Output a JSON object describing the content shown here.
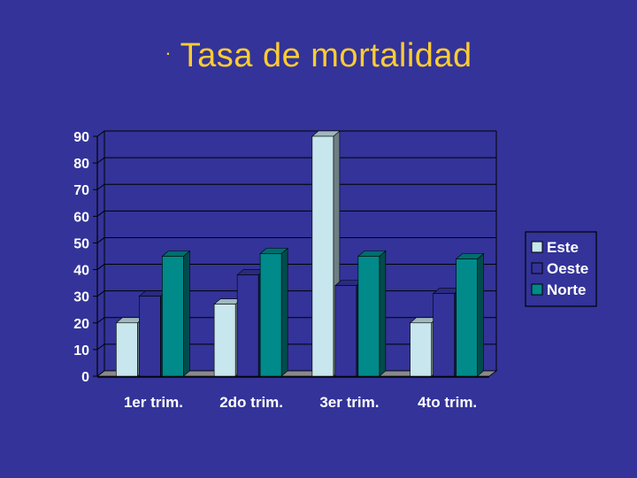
{
  "slide": {
    "bullet": "·",
    "title": "Tasa de mortalidad"
  },
  "chart_data": {
    "type": "bar",
    "title": "",
    "xlabel": "",
    "ylabel": "",
    "categories": [
      "1er trim.",
      "2do trim.",
      "3er trim.",
      "4to trim."
    ],
    "series": [
      {
        "name": "Este",
        "values": [
          20,
          27,
          90,
          20
        ]
      },
      {
        "name": "Oeste",
        "values": [
          30,
          38,
          34,
          31
        ]
      },
      {
        "name": "Norte",
        "values": [
          45,
          46,
          45,
          44
        ]
      }
    ],
    "ylim": [
      0,
      90
    ],
    "yticks": [
      "0",
      "10",
      "20",
      "30",
      "40",
      "50",
      "60",
      "70",
      "80",
      "90"
    ],
    "grid": true,
    "legend_position": "right",
    "three_d": true,
    "colors": {
      "background": "#333399",
      "plot_background": "#333399",
      "grid": "#000000",
      "axis_text": "#ffffff",
      "floor": "#8a8a8a",
      "series": [
        "#c7e6ee",
        "#333399",
        "#008a8a"
      ],
      "legend_box": "#333399",
      "legend_border": "#000000"
    }
  }
}
